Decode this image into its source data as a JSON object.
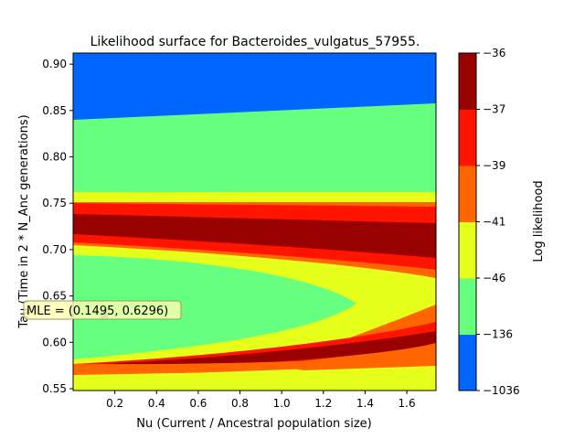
{
  "chart_data": {
    "type": "contour",
    "title": "Likelihood surface for Bacteroides_vulgatus_57955.",
    "xlabel": "Nu (Current / Ancestral population size)",
    "ylabel": "Tau (Time in 2 * N_Anc generations)",
    "xlim": [
      0.0,
      1.74
    ],
    "ylim": [
      0.548,
      0.912
    ],
    "xticks": [
      "0.2",
      "0.4",
      "0.6",
      "0.8",
      "1.0",
      "1.2",
      "1.4",
      "1.6"
    ],
    "xtick_values": [
      0.2,
      0.4,
      0.6,
      0.8,
      1.0,
      1.2,
      1.4,
      1.6
    ],
    "yticks": [
      "0.55",
      "0.60",
      "0.65",
      "0.70",
      "0.75",
      "0.80",
      "0.85",
      "0.90"
    ],
    "ytick_values": [
      0.55,
      0.6,
      0.65,
      0.7,
      0.75,
      0.8,
      0.85,
      0.9
    ],
    "colorbar": {
      "label": "Log likelihood",
      "levels": [
        "-1036",
        "-136",
        "-46",
        "-41",
        "-39",
        "-37",
        "-36"
      ],
      "colors": [
        "#0066ff",
        "#66ff80",
        "#e6ff1a",
        "#ff6600",
        "#ff1400",
        "#990000"
      ]
    },
    "mle": {
      "nu": 0.1495,
      "tau": 0.6296,
      "label": "MLE = (0.1495, 0.6296)"
    }
  }
}
